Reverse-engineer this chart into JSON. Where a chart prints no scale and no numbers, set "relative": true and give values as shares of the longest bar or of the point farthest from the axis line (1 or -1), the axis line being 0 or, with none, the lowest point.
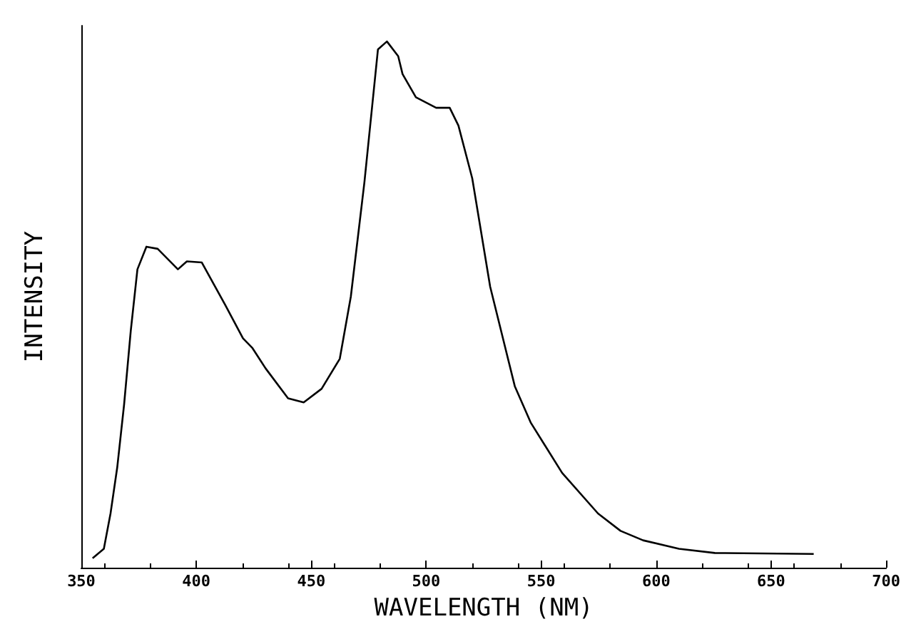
{
  "chart_data": {
    "type": "line",
    "xlabel": "WAVELENGTH (NM)",
    "ylabel": "INTENSITY",
    "relative": true,
    "xlim": [
      350,
      700
    ],
    "xticks": [
      350,
      400,
      450,
      500,
      550,
      600,
      650,
      700
    ],
    "grid": false,
    "marker": "none",
    "line_style": "solid",
    "series": [
      {
        "color": "#000000",
        "x": [
          354.9,
          359.8,
          362.7,
          365.6,
          368.6,
          371.5,
          374.4,
          378.3,
          383.2,
          392,
          395.9,
          402.4,
          412.5,
          420.3,
          424.3,
          430.1,
          439.9,
          446.7,
          454.5,
          462.4,
          467.2,
          473.1,
          479,
          482.9,
          487.8,
          489.7,
          495.5,
          504.3,
          510.2,
          514,
          520,
          527.8,
          538.5,
          545.4,
          559.1,
          574.7,
          584.5,
          594.3,
          609.9,
          625.5,
          668.5
        ],
        "values": [
          0.018,
          0.036,
          0.103,
          0.19,
          0.31,
          0.45,
          0.567,
          0.61,
          0.606,
          0.567,
          0.582,
          0.58,
          0.5,
          0.436,
          0.418,
          0.379,
          0.322,
          0.314,
          0.34,
          0.397,
          0.515,
          0.732,
          0.985,
          1,
          0.972,
          0.938,
          0.894,
          0.874,
          0.874,
          0.84,
          0.74,
          0.534,
          0.345,
          0.276,
          0.18,
          0.103,
          0.07,
          0.052,
          0.036,
          0.028,
          0.026
        ]
      }
    ]
  }
}
